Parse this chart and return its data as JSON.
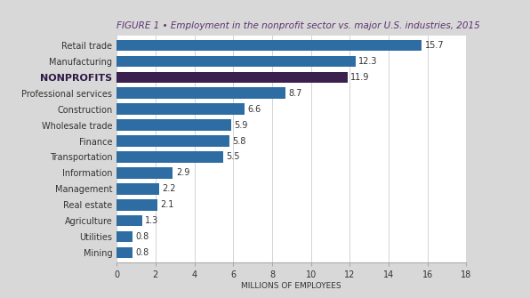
{
  "title": "FIGURE 1 • Employment in the nonprofit sector vs. major U.S. industries, 2015",
  "categories": [
    "Mining",
    "Utilities",
    "Agriculture",
    "Real estate",
    "Management",
    "Information",
    "Transportation",
    "Finance",
    "Wholesale trade",
    "Construction",
    "Professional services",
    "NONPROFITS",
    "Manufacturing",
    "Retail trade"
  ],
  "values": [
    0.8,
    0.8,
    1.3,
    2.1,
    2.2,
    2.9,
    5.5,
    5.8,
    5.9,
    6.6,
    8.7,
    11.9,
    12.3,
    15.7
  ],
  "bar_colors": [
    "#2e6da4",
    "#2e6da4",
    "#2e6da4",
    "#2e6da4",
    "#2e6da4",
    "#2e6da4",
    "#2e6da4",
    "#2e6da4",
    "#2e6da4",
    "#2e6da4",
    "#2e6da4",
    "#3b1f4e",
    "#2e6da4",
    "#2e6da4"
  ],
  "nonprofit_index": 11,
  "xlabel": "MILLIONS OF EMPLOYEES",
  "xlim": [
    0,
    18
  ],
  "xticks": [
    0,
    2,
    4,
    6,
    8,
    10,
    12,
    14,
    16,
    18
  ],
  "outer_background": "#d8d8d8",
  "plot_background": "#ffffff",
  "title_color": "#5c3370",
  "title_fontsize": 7.5,
  "label_fontsize": 7.0,
  "value_fontsize": 7.0,
  "xlabel_fontsize": 6.5,
  "grid_color": "#cccccc",
  "text_color": "#333333"
}
